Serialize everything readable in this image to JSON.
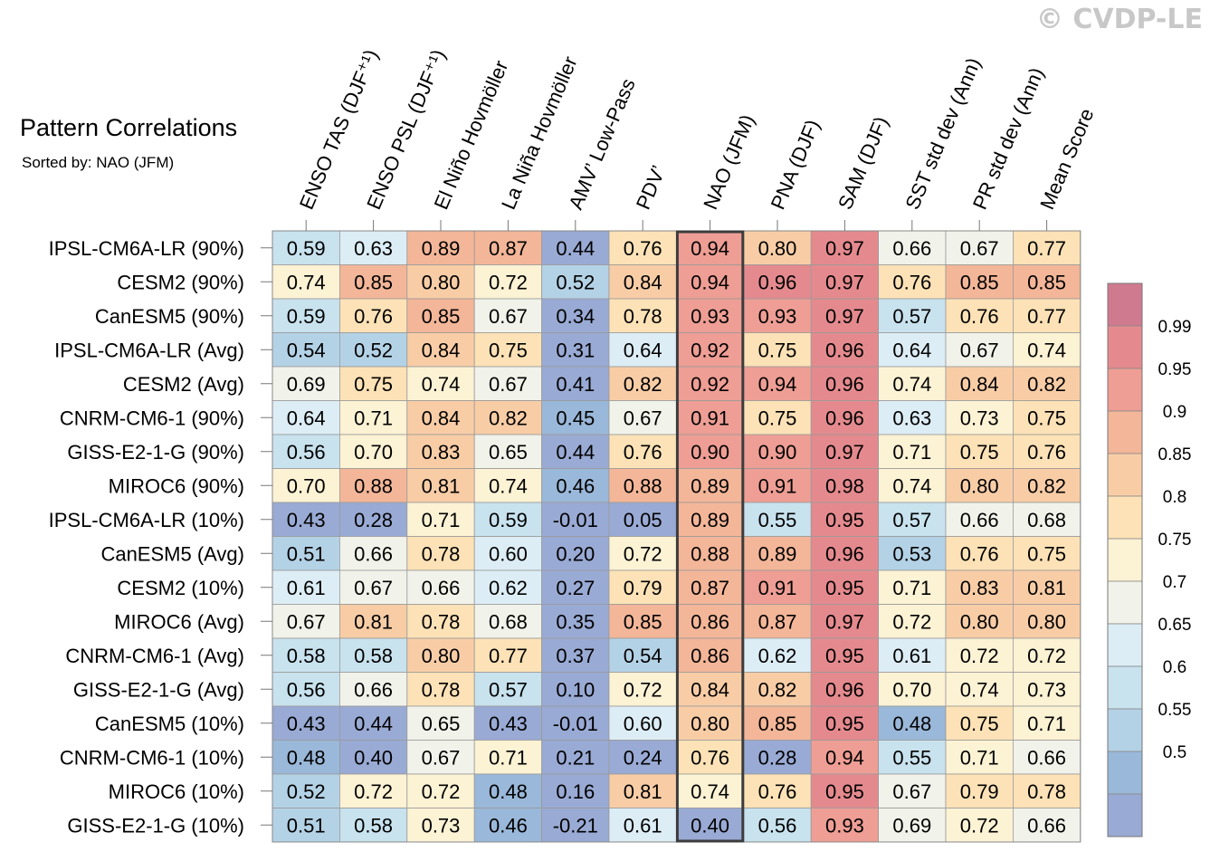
{
  "watermark": "© CVDP-LE",
  "title": "Pattern Correlations",
  "subtitle": "Sorted by: NAO (JFM)",
  "chart_data": {
    "type": "heatmap",
    "columns": [
      "ENSO TAS (DJF⁺¹)",
      "ENSO PSL (DJF⁺¹)",
      "El Niño Hovmöller",
      "La Niña Hovmöller",
      "AMV’ Low-Pass",
      "PDV’",
      "NAO (JFM)",
      "PNA (DJF)",
      "SAM (DJF)",
      "SST std dev (Ann)",
      "PR std dev (Ann)",
      "Mean Score"
    ],
    "rows": [
      "IPSL-CM6A-LR (90%)",
      "CESM2 (90%)",
      "CanESM5 (90%)",
      "IPSL-CM6A-LR (Avg)",
      "CESM2 (Avg)",
      "CNRM-CM6-1 (90%)",
      "GISS-E2-1-G (90%)",
      "MIROC6 (90%)",
      "IPSL-CM6A-LR (10%)",
      "CanESM5 (Avg)",
      "CESM2 (10%)",
      "MIROC6 (Avg)",
      "CNRM-CM6-1 (Avg)",
      "GISS-E2-1-G (Avg)",
      "CanESM5 (10%)",
      "CNRM-CM6-1 (10%)",
      "MIROC6 (10%)",
      "GISS-E2-1-G (10%)"
    ],
    "values": [
      [
        "0.59",
        "0.63",
        "0.89",
        "0.87",
        "0.44",
        "0.76",
        "0.94",
        "0.80",
        "0.97",
        "0.66",
        "0.67",
        "0.77"
      ],
      [
        "0.74",
        "0.85",
        "0.80",
        "0.72",
        "0.52",
        "0.84",
        "0.94",
        "0.96",
        "0.97",
        "0.76",
        "0.85",
        "0.85"
      ],
      [
        "0.59",
        "0.76",
        "0.85",
        "0.67",
        "0.34",
        "0.78",
        "0.93",
        "0.93",
        "0.97",
        "0.57",
        "0.76",
        "0.77"
      ],
      [
        "0.54",
        "0.52",
        "0.84",
        "0.75",
        "0.31",
        "0.64",
        "0.92",
        "0.75",
        "0.96",
        "0.64",
        "0.67",
        "0.74"
      ],
      [
        "0.69",
        "0.75",
        "0.74",
        "0.67",
        "0.41",
        "0.82",
        "0.92",
        "0.94",
        "0.96",
        "0.74",
        "0.84",
        "0.82"
      ],
      [
        "0.64",
        "0.71",
        "0.84",
        "0.82",
        "0.45",
        "0.67",
        "0.91",
        "0.75",
        "0.96",
        "0.63",
        "0.73",
        "0.75"
      ],
      [
        "0.56",
        "0.70",
        "0.83",
        "0.65",
        "0.44",
        "0.76",
        "0.90",
        "0.90",
        "0.97",
        "0.71",
        "0.75",
        "0.76"
      ],
      [
        "0.70",
        "0.88",
        "0.81",
        "0.74",
        "0.46",
        "0.88",
        "0.89",
        "0.91",
        "0.98",
        "0.74",
        "0.80",
        "0.82"
      ],
      [
        "0.43",
        "0.28",
        "0.71",
        "0.59",
        "-0.01",
        "0.05",
        "0.89",
        "0.55",
        "0.95",
        "0.57",
        "0.66",
        "0.68"
      ],
      [
        "0.51",
        "0.66",
        "0.78",
        "0.60",
        "0.20",
        "0.72",
        "0.88",
        "0.89",
        "0.96",
        "0.53",
        "0.76",
        "0.75"
      ],
      [
        "0.61",
        "0.67",
        "0.66",
        "0.62",
        "0.27",
        "0.79",
        "0.87",
        "0.91",
        "0.95",
        "0.71",
        "0.83",
        "0.81"
      ],
      [
        "0.67",
        "0.81",
        "0.78",
        "0.68",
        "0.35",
        "0.85",
        "0.86",
        "0.87",
        "0.97",
        "0.72",
        "0.80",
        "0.80"
      ],
      [
        "0.58",
        "0.58",
        "0.80",
        "0.77",
        "0.37",
        "0.54",
        "0.86",
        "0.62",
        "0.95",
        "0.61",
        "0.72",
        "0.72"
      ],
      [
        "0.56",
        "0.66",
        "0.78",
        "0.57",
        "0.10",
        "0.72",
        "0.84",
        "0.82",
        "0.96",
        "0.70",
        "0.74",
        "0.73"
      ],
      [
        "0.43",
        "0.44",
        "0.65",
        "0.43",
        "-0.01",
        "0.60",
        "0.80",
        "0.85",
        "0.95",
        "0.48",
        "0.75",
        "0.71"
      ],
      [
        "0.48",
        "0.40",
        "0.67",
        "0.71",
        "0.21",
        "0.24",
        "0.76",
        "0.28",
        "0.94",
        "0.55",
        "0.71",
        "0.66"
      ],
      [
        "0.52",
        "0.72",
        "0.72",
        "0.48",
        "0.16",
        "0.81",
        "0.74",
        "0.76",
        "0.95",
        "0.67",
        "0.79",
        "0.78"
      ],
      [
        "0.51",
        "0.58",
        "0.73",
        "0.46",
        "-0.21",
        "0.61",
        "0.40",
        "0.56",
        "0.93",
        "0.69",
        "0.72",
        "0.66"
      ]
    ],
    "highlight_column": "NAO (JFM)",
    "colorbar": {
      "labels": [
        "0.99",
        "0.95",
        "0.9",
        "0.85",
        "0.8",
        "0.75",
        "0.7",
        "0.65",
        "0.6",
        "0.55",
        "0.5"
      ],
      "colors": [
        "#d07a90",
        "#e48a8e",
        "#ee9e94",
        "#f3b698",
        "#f8cda6",
        "#fce2b6",
        "#fcf2d4",
        "#f1f3ea",
        "#ddedf5",
        "#c8e2ee",
        "#b4d2e6",
        "#9ab8d9",
        "#99aad4"
      ]
    }
  }
}
